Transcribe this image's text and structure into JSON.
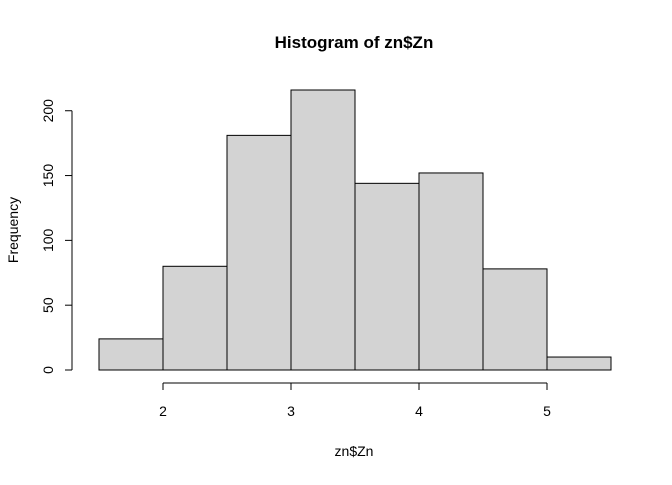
{
  "chart_data": {
    "type": "bar",
    "title": "Histogram of zn$Zn",
    "xlabel": "zn$Zn",
    "ylabel": "Frequency",
    "bins": [
      {
        "from": 1.5,
        "to": 2.0,
        "count": 24
      },
      {
        "from": 2.0,
        "to": 2.5,
        "count": 80
      },
      {
        "from": 2.5,
        "to": 3.0,
        "count": 181
      },
      {
        "from": 3.0,
        "to": 3.5,
        "count": 216
      },
      {
        "from": 3.5,
        "to": 4.0,
        "count": 144
      },
      {
        "from": 4.0,
        "to": 4.5,
        "count": 152
      },
      {
        "from": 4.5,
        "to": 5.0,
        "count": 78
      },
      {
        "from": 5.0,
        "to": 5.5,
        "count": 10
      }
    ],
    "xlim": [
      1.5,
      5.5
    ],
    "ylim": [
      0,
      216
    ],
    "x_ticks": [
      2,
      3,
      4,
      5
    ],
    "y_ticks": [
      0,
      50,
      100,
      150,
      200
    ],
    "x_tick_labels": [
      "2",
      "3",
      "4",
      "5"
    ],
    "y_tick_labels": [
      "0",
      "50",
      "100",
      "150",
      "200"
    ],
    "bar_fill": "#d3d3d3",
    "bar_stroke": "#000000",
    "grid": false,
    "legend": "none"
  }
}
